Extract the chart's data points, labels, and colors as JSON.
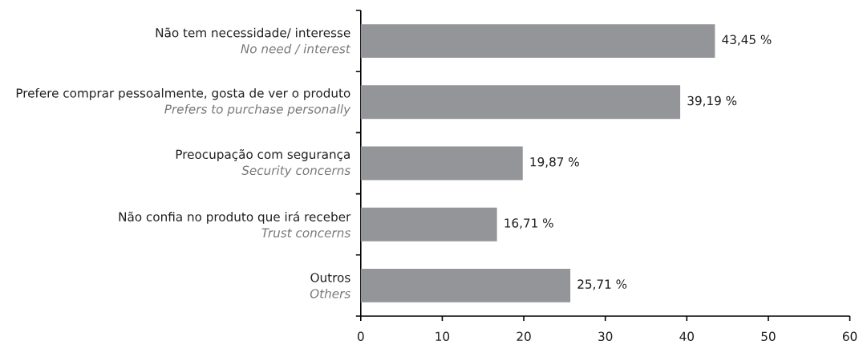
{
  "chart_data": {
    "type": "bar",
    "orientation": "horizontal",
    "categories": [
      "Não tem necessidade/ interesse\n*No need / interest*",
      "Prefere comprar pessoalmente, gosta de ver o produto\n*Prefers to purchase personally*",
      "Preocupação com segurança\n*Security concerns*",
      "Não confia no produto que irá receber\n*Trust concerns*",
      "Outros\n*Others*"
    ],
    "values": [
      43.45,
      39.19,
      19.87,
      16.71,
      25.71
    ],
    "color": "#939598",
    "value_labels": [
      "43,45 %",
      "39,19 %",
      "19,87 %",
      "16,71 %",
      "25,71 %"
    ],
    "xlim": [
      0,
      60
    ],
    "xticks": [
      0,
      10,
      20,
      30,
      40,
      50,
      60
    ]
  }
}
